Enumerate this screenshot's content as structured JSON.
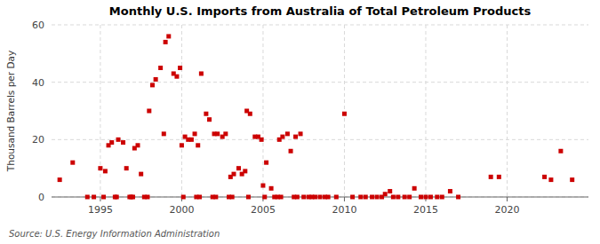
{
  "chart_data": {
    "type": "scatter",
    "title": "Monthly U.S. Imports from Australia of Total Petroleum Products",
    "y_label": "Thousand Barrels per Day",
    "annotation": "Source: U.S. Energy Information Administration",
    "color": "#cc0000",
    "marker": "square",
    "grid": true,
    "xlim": [
      1992.0,
      2025.0
    ],
    "ylim": [
      0,
      60
    ],
    "xticks": [
      1995,
      2000,
      2005,
      2010,
      2015,
      2020
    ],
    "yticks": [
      0,
      20,
      40,
      60
    ],
    "x": [
      1992.5,
      1993.3,
      1994.2,
      1994.6,
      1995.0,
      1995.3,
      1995.5,
      1995.7,
      1995.2,
      1995.9,
      1996.1,
      1996.4,
      1996.6,
      1996.0,
      1996.8,
      1996.9,
      1997.0,
      1997.1,
      1997.3,
      1997.5,
      1997.7,
      1997.9,
      1998.0,
      1998.2,
      1998.4,
      1998.7,
      1998.9,
      1999.0,
      1999.2,
      1999.5,
      1999.7,
      1999.9,
      2000.0,
      2000.2,
      2000.4,
      2000.6,
      2000.8,
      2000.1,
      2000.9,
      2001.0,
      2001.2,
      2001.5,
      2001.7,
      2001.1,
      2001.9,
      2002.0,
      2002.2,
      2002.5,
      2002.7,
      2002.1,
      2002.9,
      2003.0,
      2003.2,
      2003.5,
      2003.7,
      2003.9,
      2003.1,
      2004.0,
      2004.2,
      2004.5,
      2004.7,
      2004.9,
      2004.1,
      2005.0,
      2005.2,
      2005.5,
      2005.1,
      2005.7,
      2005.9,
      2006.0,
      2006.2,
      2006.5,
      2006.7,
      2006.1,
      2006.9,
      2007.0,
      2007.3,
      2007.1,
      2007.5,
      2007.8,
      2008.0,
      2008.2,
      2008.5,
      2008.8,
      2009.0,
      2009.5,
      2010.0,
      2010.5,
      2011.0,
      2011.3,
      2011.7,
      2012.0,
      2012.3,
      2012.5,
      2012.8,
      2013.0,
      2013.3,
      2013.7,
      2014.0,
      2014.3,
      2014.7,
      2015.0,
      2015.3,
      2015.7,
      2016.5,
      2016.0,
      2017.0,
      2019.0,
      2019.5,
      2022.3,
      2022.7,
      2023.3,
      2024.0
    ],
    "values": [
      6,
      12,
      0,
      0,
      10,
      9,
      18,
      19,
      0,
      0,
      20,
      19,
      10,
      0,
      0,
      0,
      0,
      17,
      18,
      8,
      0,
      0,
      30,
      39,
      41,
      45,
      22,
      54,
      56,
      43,
      42,
      45,
      18,
      21,
      20,
      20,
      22,
      0,
      0,
      18,
      43,
      29,
      27,
      0,
      0,
      22,
      22,
      21,
      22,
      0,
      0,
      7,
      8,
      10,
      8,
      9,
      0,
      30,
      29,
      21,
      21,
      20,
      0,
      4,
      12,
      3,
      0,
      0,
      0,
      20,
      21,
      22,
      16,
      0,
      0,
      21,
      22,
      0,
      0,
      0,
      0,
      0,
      0,
      0,
      0,
      0,
      29,
      0,
      0,
      0,
      0,
      0,
      0,
      1,
      2,
      0,
      0,
      0,
      0,
      3,
      0,
      0,
      0,
      0,
      2,
      0,
      0,
      7,
      7,
      7,
      6,
      16,
      6
    ]
  }
}
